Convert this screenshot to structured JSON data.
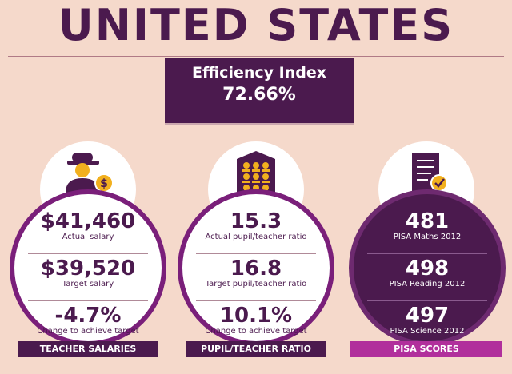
{
  "title": "UNITED STATES",
  "efficiency": {
    "label": "Efficiency Index",
    "value": "72.66%"
  },
  "panels": [
    {
      "icon": "teacher-salary-icon",
      "metrics": [
        {
          "value": "$41,460",
          "label": "Actual salary"
        },
        {
          "value": "$39,520",
          "label": "Target salary"
        },
        {
          "value": "-4.7%",
          "label": "Change to achieve target"
        }
      ],
      "banner": "TEACHER SALARIES"
    },
    {
      "icon": "classroom-icon",
      "metrics": [
        {
          "value": "15.3",
          "label": "Actual pupil/teacher ratio"
        },
        {
          "value": "16.8",
          "label": "Target pupil/teacher ratio"
        },
        {
          "value": "10.1%",
          "label": "Change to achieve target"
        }
      ],
      "banner": "PUPIL/TEACHER RATIO"
    },
    {
      "icon": "checklist-icon",
      "metrics": [
        {
          "value": "481",
          "label": "PISA Maths 2012"
        },
        {
          "value": "498",
          "label": "PISA Reading 2012"
        },
        {
          "value": "497",
          "label": "PISA Science 2012"
        }
      ],
      "banner": "PISA SCORES"
    }
  ],
  "colors": {
    "background": "#f5d9cb",
    "primary": "#4b1a4e",
    "accent": "#7a1f7a",
    "pisa_banner": "#b12f9c",
    "coin": "#f2b01e"
  }
}
